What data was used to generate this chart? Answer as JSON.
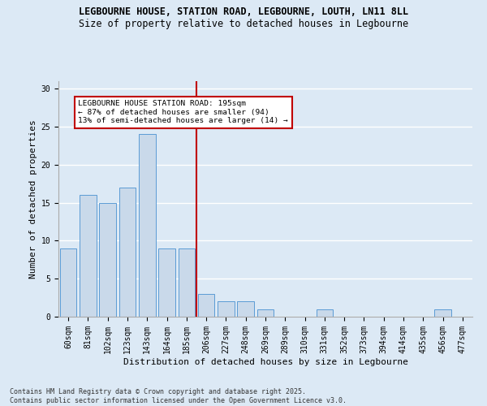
{
  "title_line1": "LEGBOURNE HOUSE, STATION ROAD, LEGBOURNE, LOUTH, LN11 8LL",
  "title_line2": "Size of property relative to detached houses in Legbourne",
  "xlabel": "Distribution of detached houses by size in Legbourne",
  "ylabel": "Number of detached properties",
  "categories": [
    "60sqm",
    "81sqm",
    "102sqm",
    "123sqm",
    "143sqm",
    "164sqm",
    "185sqm",
    "206sqm",
    "227sqm",
    "248sqm",
    "269sqm",
    "289sqm",
    "310sqm",
    "331sqm",
    "352sqm",
    "373sqm",
    "394sqm",
    "414sqm",
    "435sqm",
    "456sqm",
    "477sqm"
  ],
  "values": [
    9,
    16,
    15,
    17,
    24,
    9,
    9,
    3,
    2,
    2,
    1,
    0,
    0,
    1,
    0,
    0,
    0,
    0,
    0,
    1,
    0
  ],
  "bar_color": "#c9d9ea",
  "bar_edge_color": "#5b9bd5",
  "vline_x_idx": 6.5,
  "vline_color": "#c00000",
  "annotation_text": "LEGBOURNE HOUSE STATION ROAD: 195sqm\n← 87% of detached houses are smaller (94)\n13% of semi-detached houses are larger (14) →",
  "annotation_box_color": "#ffffff",
  "annotation_box_edge": "#c00000",
  "ylim": [
    0,
    31
  ],
  "yticks": [
    0,
    5,
    10,
    15,
    20,
    25,
    30
  ],
  "footer_line1": "Contains HM Land Registry data © Crown copyright and database right 2025.",
  "footer_line2": "Contains public sector information licensed under the Open Government Licence v3.0.",
  "bg_color": "#dce9f5",
  "plot_bg_color": "#dce9f5",
  "grid_color": "#ffffff",
  "title_fontsize": 8.5,
  "subtitle_fontsize": 8.5,
  "tick_fontsize": 7,
  "label_fontsize": 8,
  "footer_fontsize": 6.0
}
